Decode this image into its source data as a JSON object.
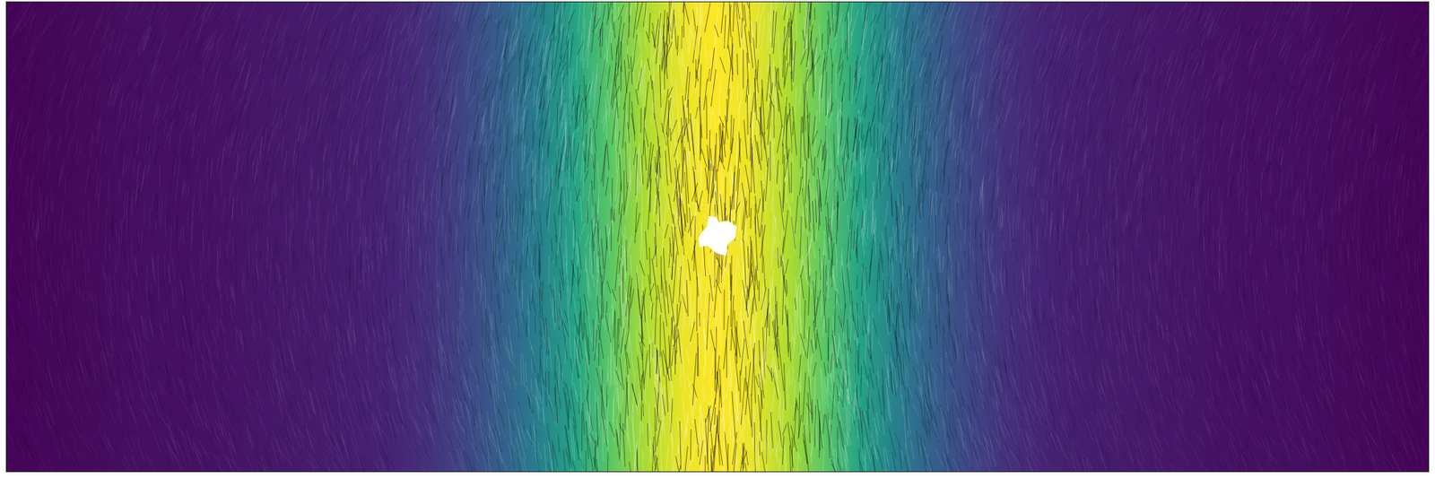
{
  "chart_data": {
    "type": "heatmap",
    "x": [
      0,
      0.025,
      0.05,
      0.075,
      0.1,
      0.125,
      0.15,
      0.175,
      0.2,
      0.225,
      0.25,
      0.275,
      0.3,
      0.325,
      0.35,
      0.375,
      0.4,
      0.425,
      0.45,
      0.475,
      0.5,
      0.525,
      0.55,
      0.575,
      0.6,
      0.625,
      0.65,
      0.675,
      0.7,
      0.725,
      0.75,
      0.775,
      0.8,
      0.825,
      0.85,
      0.875,
      0.9,
      0.925,
      0.95,
      0.975,
      1
    ],
    "values": [
      0.01,
      0.02,
      0.03,
      0.04,
      0.05,
      0.05,
      0.06,
      0.07,
      0.08,
      0.09,
      0.1,
      0.12,
      0.16,
      0.22,
      0.31,
      0.43,
      0.58,
      0.74,
      0.88,
      0.97,
      1.0,
      0.97,
      0.88,
      0.74,
      0.58,
      0.43,
      0.31,
      0.22,
      0.16,
      0.12,
      0.1,
      0.09,
      0.08,
      0.07,
      0.06,
      0.05,
      0.05,
      0.04,
      0.03,
      0.02,
      0.01
    ],
    "xlim": [
      0,
      1
    ],
    "color_range": [
      0,
      1
    ],
    "tick_labels": false
  }
}
